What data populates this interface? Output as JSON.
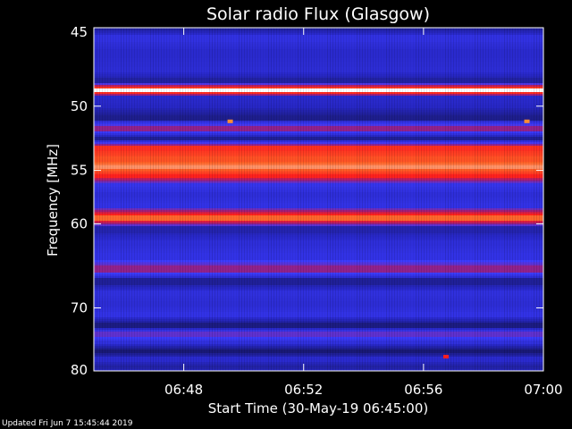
{
  "chart_data": {
    "type": "heatmap",
    "title": "Solar radio Flux (Glasgow)",
    "xlabel": "Start Time (30-May-19 06:45:00)",
    "ylabel": "Frequency [MHz]",
    "x_ticks": [
      "06:48",
      "06:52",
      "06:56",
      "07:00"
    ],
    "x_tick_minutes": [
      3,
      7,
      11,
      15
    ],
    "xlim_minutes": [
      0,
      15
    ],
    "y_ticks": [
      45,
      50,
      55,
      60,
      70,
      80
    ],
    "ylim": [
      45,
      80
    ],
    "y_scale": "reciprocal",
    "grid": false,
    "legend": "none",
    "colormap": [
      "#000000",
      "#1a1a78",
      "#2828c8",
      "#3c3cff",
      "#a01e78",
      "#ff1e1e",
      "#ff6428",
      "#ffffff"
    ],
    "frequency_bands": [
      {
        "freq_mhz": 45.0,
        "level": 0.2
      },
      {
        "freq_mhz": 45.6,
        "level": 0.35
      },
      {
        "freq_mhz": 46.5,
        "level": 0.3
      },
      {
        "freq_mhz": 47.6,
        "level": 0.32
      },
      {
        "freq_mhz": 48.3,
        "level": 0.22
      },
      {
        "freq_mhz": 48.9,
        "level": 1.0
      },
      {
        "freq_mhz": 49.4,
        "level": 0.3
      },
      {
        "freq_mhz": 50.0,
        "level": 0.28
      },
      {
        "freq_mhz": 50.8,
        "level": 0.18
      },
      {
        "freq_mhz": 51.6,
        "level": 0.55
      },
      {
        "freq_mhz": 52.4,
        "level": 0.2
      },
      {
        "freq_mhz": 53.2,
        "level": 0.75
      },
      {
        "freq_mhz": 54.1,
        "level": 0.82
      },
      {
        "freq_mhz": 54.7,
        "level": 0.9
      },
      {
        "freq_mhz": 55.5,
        "level": 0.72
      },
      {
        "freq_mhz": 56.3,
        "level": 0.38
      },
      {
        "freq_mhz": 57.2,
        "level": 0.33
      },
      {
        "freq_mhz": 58.2,
        "level": 0.36
      },
      {
        "freq_mhz": 59.4,
        "level": 0.86
      },
      {
        "freq_mhz": 60.6,
        "level": 0.24
      },
      {
        "freq_mhz": 62.0,
        "level": 0.33
      },
      {
        "freq_mhz": 63.5,
        "level": 0.36
      },
      {
        "freq_mhz": 65.0,
        "level": 0.55
      },
      {
        "freq_mhz": 66.5,
        "level": 0.2
      },
      {
        "freq_mhz": 68.0,
        "level": 0.34
      },
      {
        "freq_mhz": 69.5,
        "level": 0.32
      },
      {
        "freq_mhz": 71.0,
        "level": 0.36
      },
      {
        "freq_mhz": 72.5,
        "level": 0.16
      },
      {
        "freq_mhz": 73.8,
        "level": 0.48
      },
      {
        "freq_mhz": 75.2,
        "level": 0.34
      },
      {
        "freq_mhz": 76.5,
        "level": 0.14
      },
      {
        "freq_mhz": 78.0,
        "level": 0.3
      },
      {
        "freq_mhz": 79.3,
        "level": 0.22
      },
      {
        "freq_mhz": 80.0,
        "level": 0.26
      }
    ],
    "annotations": [
      {
        "time_minutes": 4.55,
        "freq_mhz": 51.1,
        "color": "#ff8c32"
      },
      {
        "time_minutes": 14.45,
        "freq_mhz": 51.1,
        "color": "#ff8c32"
      },
      {
        "time_minutes": 11.75,
        "freq_mhz": 77.5,
        "color": "#ff1e1e"
      }
    ]
  },
  "footer": {
    "updated": "Updated Fri Jun  7 15:45:44 2019"
  }
}
